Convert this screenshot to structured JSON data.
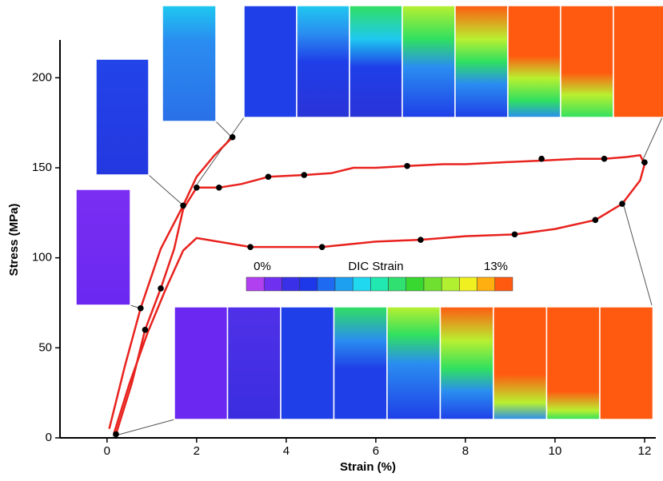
{
  "chart_data": {
    "type": "line",
    "x_label": "Strain (%)",
    "y_label": "Stress (MPa)",
    "xlim": [
      -1.05,
      12.25
    ],
    "ylim": [
      0,
      221
    ],
    "xticks": [
      0,
      2,
      4,
      6,
      8,
      10,
      12
    ],
    "yticks": [
      0,
      50,
      100,
      150,
      200
    ],
    "grid": false,
    "series": [
      {
        "color": "#e8221e",
        "x": [
          0.05,
          0.4,
          0.75,
          1.2,
          1.7,
          2.0,
          2.4,
          2.8
        ],
        "values": [
          5,
          40,
          72,
          105,
          129,
          145,
          157,
          167
        ]
      },
      {
        "color": "#e8221e",
        "x": [
          0.2,
          0.55,
          0.85,
          1.2,
          1.5,
          1.7,
          2.0,
          2.5,
          3.0,
          3.6,
          4.4,
          5.0,
          5.5,
          6.0,
          6.7,
          7.5,
          8.0,
          8.8,
          9.7,
          10.5,
          11.1,
          11.6,
          11.9,
          12.0,
          11.9,
          11.5,
          10.9,
          10.0,
          9.1,
          8.0,
          7.0,
          6.0,
          4.8,
          3.2,
          2.0,
          1.7,
          1.3,
          0.9,
          0.5,
          0.15
        ],
        "values": [
          2,
          30,
          60,
          83,
          105,
          127,
          139,
          139,
          141,
          145,
          146,
          147,
          150,
          150,
          151,
          152,
          152,
          153,
          154,
          155,
          155,
          156,
          157,
          152,
          143,
          130,
          121,
          116,
          113,
          112,
          110,
          109,
          106,
          106,
          111,
          104,
          82,
          58,
          30,
          2
        ]
      },
      {
        "color": "#000000",
        "style": "markers",
        "x": [
          0.2,
          0.75,
          0.85,
          1.2,
          1.7,
          2.0,
          2.5,
          2.8,
          3.6,
          4.4,
          6.7,
          9.7,
          11.1,
          12.0,
          11.5,
          10.9,
          9.1,
          7.0,
          4.8,
          3.2
        ],
        "values": [
          2,
          72,
          60,
          83,
          129,
          139,
          139,
          167,
          145,
          146,
          151,
          155,
          155,
          153,
          130,
          121,
          113,
          110,
          106,
          106
        ]
      }
    ],
    "colorbar": {
      "min_label": "0%",
      "title": "DIC Strain",
      "max_label": "13%"
    }
  }
}
